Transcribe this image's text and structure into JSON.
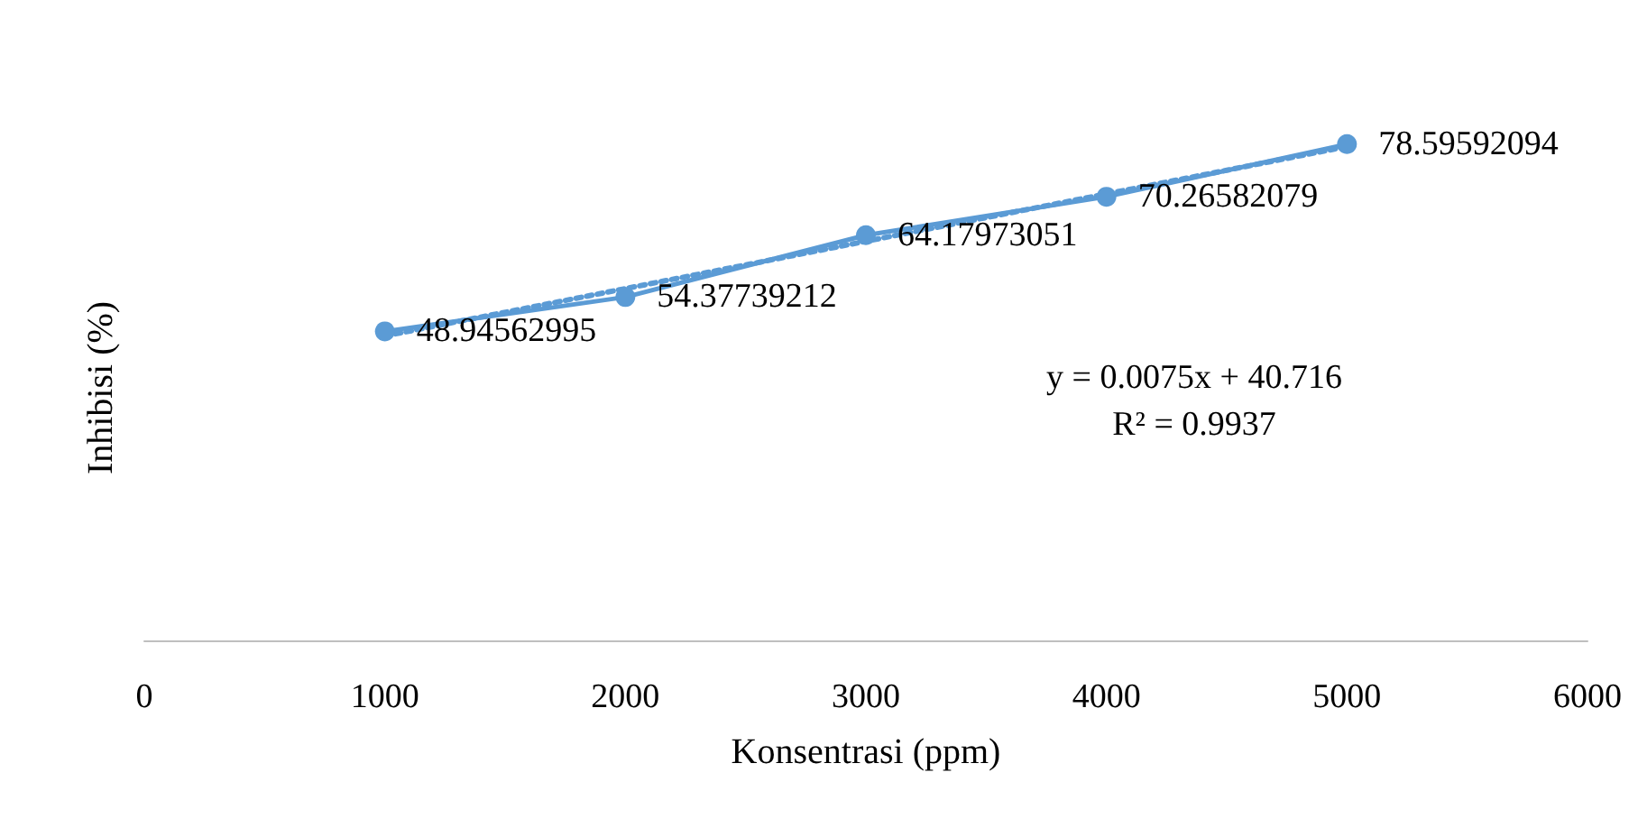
{
  "chart_data": {
    "type": "line",
    "xlabel": "Konsentrasi (ppm)",
    "ylabel": "Inhibisi (%)",
    "x": [
      1000,
      2000,
      3000,
      4000,
      5000
    ],
    "series": [
      {
        "color": "#5b9bd5",
        "values": [
          48.94562995,
          54.37739212,
          64.17973051,
          70.26582079,
          78.59592094
        ],
        "marker": "circle",
        "line_style": "solid",
        "data_labels": true
      },
      {
        "color": "#5b9bd5",
        "x": [
          1000,
          5000
        ],
        "values": [
          48.216,
          78.216
        ],
        "marker": "none",
        "line_style": "dotted"
      }
    ],
    "xlim": [
      0,
      6000
    ],
    "xticks": [
      0,
      1000,
      2000,
      3000,
      4000,
      5000,
      6000
    ],
    "tick_labels": "x",
    "grid": false,
    "annotations": [
      "y = 0.0075x + 40.716",
      "R² = 0.9937"
    ]
  }
}
